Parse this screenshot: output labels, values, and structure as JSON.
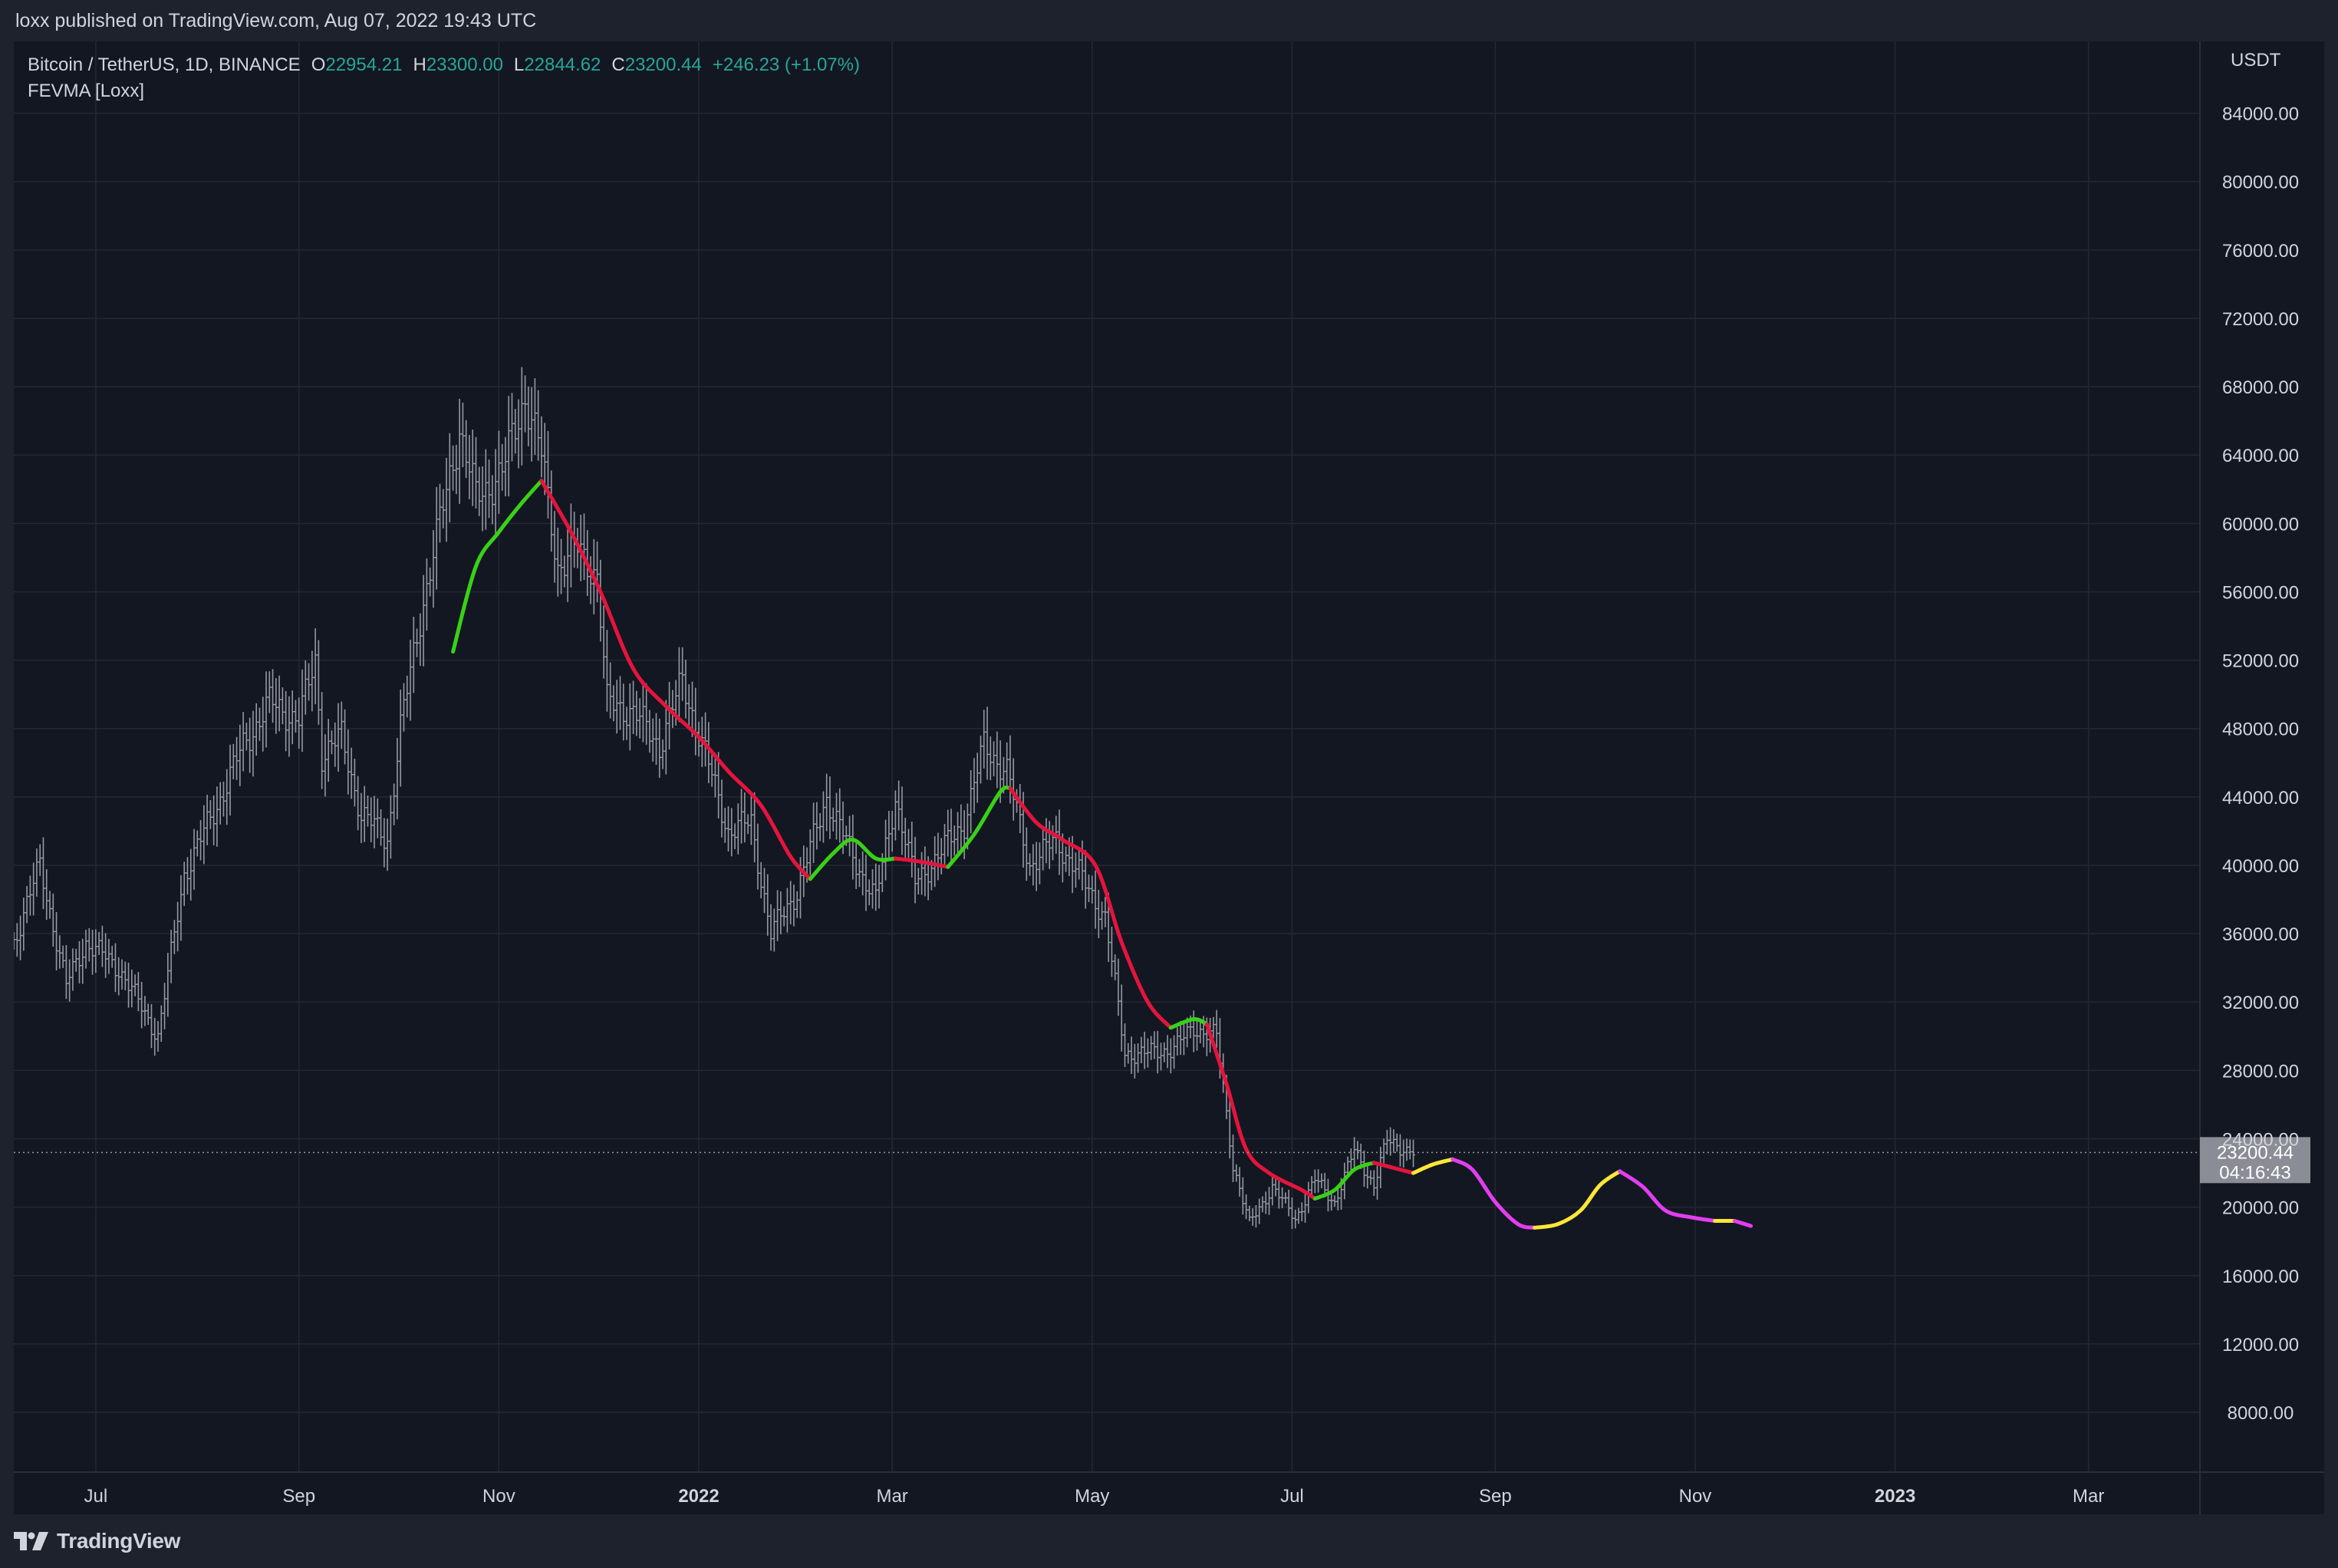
{
  "header": {
    "publish_text": "loxx published on TradingView.com, Aug 07, 2022 19:43 UTC"
  },
  "legend": {
    "symbol": "Bitcoin / TetherUS, 1D, BINANCE",
    "open_label": "O",
    "open_value": "22954.21",
    "high_label": "H",
    "high_value": "23300.00",
    "low_label": "L",
    "low_value": "22844.62",
    "close_label": "C",
    "close_value": "23200.44",
    "change": "+246.23 (+1.07%)",
    "indicator": "FEVMA [Loxx]"
  },
  "footer": {
    "brand": "TradingView",
    "logo_icon": "tradingview-logo-icon"
  },
  "colors": {
    "background": "#131722",
    "frame": "#1e222d",
    "grid": "#242833",
    "bars": "#9598a1",
    "up_green": "#39d117",
    "down_red": "#e5143d",
    "forecast_yellow": "#ffe737",
    "forecast_magenta": "#e23ef0",
    "price_label_bg": "#8a8d95",
    "legend_values": "#26a69a"
  },
  "chart_data": {
    "type": "line",
    "title": "Bitcoin / TetherUS, 1D, BINANCE",
    "y_axis": {
      "label": "USDT",
      "ticks": [
        "84000.00",
        "80000.00",
        "76000.00",
        "72000.00",
        "68000.00",
        "64000.00",
        "60000.00",
        "56000.00",
        "52000.00",
        "48000.00",
        "44000.00",
        "40000.00",
        "36000.00",
        "32000.00",
        "28000.00",
        "24000.00",
        "20000.00",
        "16000.00",
        "12000.00",
        "8000.00"
      ],
      "range": [
        4500,
        88200
      ]
    },
    "x_axis": {
      "ticks": [
        {
          "label": "Jul",
          "date": "2021-07-01",
          "bold": false
        },
        {
          "label": "Sep",
          "date": "2021-09-01",
          "bold": false
        },
        {
          "label": "Nov",
          "date": "2021-11-01",
          "bold": false
        },
        {
          "label": "2022",
          "date": "2022-01-01",
          "bold": true
        },
        {
          "label": "Mar",
          "date": "2022-03-01",
          "bold": false
        },
        {
          "label": "May",
          "date": "2022-05-01",
          "bold": false
        },
        {
          "label": "Jul",
          "date": "2022-07-01",
          "bold": false
        },
        {
          "label": "Sep",
          "date": "2022-09-01",
          "bold": false
        },
        {
          "label": "Nov",
          "date": "2022-11-01",
          "bold": false
        },
        {
          "label": "2023",
          "date": "2023-01-01",
          "bold": true
        },
        {
          "label": "Mar",
          "date": "2023-03-01",
          "bold": false
        }
      ],
      "range": [
        "2021-06-06",
        "2023-04-04"
      ]
    },
    "price_series": {
      "name": "Bitcoin / TetherUS",
      "style": "bars",
      "closes": [
        {
          "date": "2021-06-06",
          "close": 35500
        },
        {
          "date": "2021-06-14",
          "close": 40000
        },
        {
          "date": "2021-06-22",
          "close": 33000
        },
        {
          "date": "2021-06-28",
          "close": 35500
        },
        {
          "date": "2021-07-08",
          "close": 34000
        },
        {
          "date": "2021-07-20",
          "close": 30000
        },
        {
          "date": "2021-07-28",
          "close": 39500
        },
        {
          "date": "2021-08-07",
          "close": 43500
        },
        {
          "date": "2021-08-15",
          "close": 47000
        },
        {
          "date": "2021-08-23",
          "close": 49500
        },
        {
          "date": "2021-09-01",
          "close": 48500
        },
        {
          "date": "2021-09-06",
          "close": 52000
        },
        {
          "date": "2021-09-08",
          "close": 46500
        },
        {
          "date": "2021-09-14",
          "close": 47500
        },
        {
          "date": "2021-09-20",
          "close": 43000
        },
        {
          "date": "2021-09-28",
          "close": 41500
        },
        {
          "date": "2021-10-02",
          "close": 48000
        },
        {
          "date": "2021-10-08",
          "close": 54500
        },
        {
          "date": "2021-10-15",
          "close": 61000
        },
        {
          "date": "2021-10-20",
          "close": 65500
        },
        {
          "date": "2021-10-25",
          "close": 61500
        },
        {
          "date": "2021-11-02",
          "close": 63000
        },
        {
          "date": "2021-11-09",
          "close": 67500
        },
        {
          "date": "2021-11-14",
          "close": 64000
        },
        {
          "date": "2021-11-19",
          "close": 57500
        },
        {
          "date": "2021-11-25",
          "close": 58500
        },
        {
          "date": "2021-12-01",
          "close": 57000
        },
        {
          "date": "2021-12-04",
          "close": 49500
        },
        {
          "date": "2021-12-12",
          "close": 49000
        },
        {
          "date": "2021-12-20",
          "close": 47000
        },
        {
          "date": "2021-12-27",
          "close": 50800
        },
        {
          "date": "2022-01-03",
          "close": 46500
        },
        {
          "date": "2022-01-10",
          "close": 42000
        },
        {
          "date": "2022-01-17",
          "close": 42500
        },
        {
          "date": "2022-01-23",
          "close": 36000
        },
        {
          "date": "2022-01-31",
          "close": 38500
        },
        {
          "date": "2022-02-09",
          "close": 44000
        },
        {
          "date": "2022-02-17",
          "close": 40500
        },
        {
          "date": "2022-02-24",
          "close": 38000
        },
        {
          "date": "2022-03-02",
          "close": 44000
        },
        {
          "date": "2022-03-08",
          "close": 39000
        },
        {
          "date": "2022-03-16",
          "close": 40800
        },
        {
          "date": "2022-03-23",
          "close": 42500
        },
        {
          "date": "2022-03-29",
          "close": 47000
        },
        {
          "date": "2022-04-05",
          "close": 45500
        },
        {
          "date": "2022-04-12",
          "close": 40000
        },
        {
          "date": "2022-04-20",
          "close": 41500
        },
        {
          "date": "2022-04-27",
          "close": 39500
        },
        {
          "date": "2022-05-05",
          "close": 37000
        },
        {
          "date": "2022-05-11",
          "close": 29000
        },
        {
          "date": "2022-05-18",
          "close": 29000
        },
        {
          "date": "2022-05-26",
          "close": 29300
        },
        {
          "date": "2022-06-01",
          "close": 30500
        },
        {
          "date": "2022-06-08",
          "close": 30000
        },
        {
          "date": "2022-06-13",
          "close": 22500
        },
        {
          "date": "2022-06-18",
          "close": 19000
        },
        {
          "date": "2022-06-25",
          "close": 21200
        },
        {
          "date": "2022-07-02",
          "close": 19300
        },
        {
          "date": "2022-07-08",
          "close": 21600
        },
        {
          "date": "2022-07-14",
          "close": 20300
        },
        {
          "date": "2022-07-20",
          "close": 23300
        },
        {
          "date": "2022-07-26",
          "close": 21300
        },
        {
          "date": "2022-07-30",
          "close": 23900
        },
        {
          "date": "2022-08-07",
          "close": 23200
        }
      ]
    },
    "indicator_series": {
      "name": "FEVMA [Loxx]",
      "segments": [
        {
          "color": "green",
          "points": [
            {
              "date": "2021-10-18",
              "value": 52500
            },
            {
              "date": "2021-10-25",
              "value": 57500
            },
            {
              "date": "2021-11-01",
              "value": 59500
            },
            {
              "date": "2021-11-08",
              "value": 61200
            },
            {
              "date": "2021-11-14",
              "value": 62500
            }
          ]
        },
        {
          "color": "red",
          "points": [
            {
              "date": "2021-11-14",
              "value": 62500
            },
            {
              "date": "2021-11-23",
              "value": 59500
            },
            {
              "date": "2021-12-02",
              "value": 56000
            },
            {
              "date": "2021-12-12",
              "value": 51500
            },
            {
              "date": "2021-12-22",
              "value": 49300
            },
            {
              "date": "2022-01-01",
              "value": 47500
            },
            {
              "date": "2022-01-10",
              "value": 45500
            },
            {
              "date": "2022-01-20",
              "value": 43500
            },
            {
              "date": "2022-01-29",
              "value": 40500
            },
            {
              "date": "2022-02-04",
              "value": 39200
            }
          ]
        },
        {
          "color": "green",
          "points": [
            {
              "date": "2022-02-04",
              "value": 39200
            },
            {
              "date": "2022-02-11",
              "value": 40700
            },
            {
              "date": "2022-02-17",
              "value": 41500
            },
            {
              "date": "2022-02-24",
              "value": 40400
            },
            {
              "date": "2022-03-02",
              "value": 40400
            }
          ]
        },
        {
          "color": "red",
          "points": [
            {
              "date": "2022-03-02",
              "value": 40400
            },
            {
              "date": "2022-03-10",
              "value": 40200
            },
            {
              "date": "2022-03-18",
              "value": 39900
            }
          ]
        },
        {
          "color": "green",
          "points": [
            {
              "date": "2022-03-18",
              "value": 39900
            },
            {
              "date": "2022-03-26",
              "value": 41800
            },
            {
              "date": "2022-04-03",
              "value": 44300
            },
            {
              "date": "2022-04-06",
              "value": 44500
            }
          ]
        },
        {
          "color": "red",
          "points": [
            {
              "date": "2022-04-06",
              "value": 44500
            },
            {
              "date": "2022-04-14",
              "value": 42500
            },
            {
              "date": "2022-04-22",
              "value": 41500
            },
            {
              "date": "2022-05-02",
              "value": 40000
            },
            {
              "date": "2022-05-10",
              "value": 35500
            },
            {
              "date": "2022-05-18",
              "value": 32000
            },
            {
              "date": "2022-05-25",
              "value": 30500
            }
          ]
        },
        {
          "color": "green",
          "points": [
            {
              "date": "2022-05-25",
              "value": 30500
            },
            {
              "date": "2022-06-01",
              "value": 31000
            },
            {
              "date": "2022-06-05",
              "value": 30700
            }
          ]
        },
        {
          "color": "red",
          "points": [
            {
              "date": "2022-06-05",
              "value": 30700
            },
            {
              "date": "2022-06-11",
              "value": 27200
            },
            {
              "date": "2022-06-17",
              "value": 23400
            },
            {
              "date": "2022-06-24",
              "value": 22000
            },
            {
              "date": "2022-07-04",
              "value": 21000
            },
            {
              "date": "2022-07-08",
              "value": 20500
            }
          ]
        },
        {
          "color": "green",
          "points": [
            {
              "date": "2022-07-08",
              "value": 20500
            },
            {
              "date": "2022-07-14",
              "value": 21000
            },
            {
              "date": "2022-07-20",
              "value": 22200
            },
            {
              "date": "2022-07-26",
              "value": 22600
            }
          ]
        },
        {
          "color": "red",
          "points": [
            {
              "date": "2022-07-26",
              "value": 22600
            },
            {
              "date": "2022-08-01",
              "value": 22300
            },
            {
              "date": "2022-08-07",
              "value": 22000
            }
          ]
        },
        {
          "color": "yellow",
          "points": [
            {
              "date": "2022-08-07",
              "value": 22000
            },
            {
              "date": "2022-08-13",
              "value": 22500
            },
            {
              "date": "2022-08-19",
              "value": 22800
            }
          ]
        },
        {
          "color": "magenta",
          "points": [
            {
              "date": "2022-08-19",
              "value": 22800
            },
            {
              "date": "2022-08-25",
              "value": 22200
            },
            {
              "date": "2022-09-01",
              "value": 20300
            },
            {
              "date": "2022-09-08",
              "value": 19000
            },
            {
              "date": "2022-09-13",
              "value": 18800
            }
          ]
        },
        {
          "color": "yellow",
          "points": [
            {
              "date": "2022-09-13",
              "value": 18800
            },
            {
              "date": "2022-09-20",
              "value": 19000
            },
            {
              "date": "2022-09-27",
              "value": 19800
            },
            {
              "date": "2022-10-03",
              "value": 21300
            },
            {
              "date": "2022-10-09",
              "value": 22100
            }
          ]
        },
        {
          "color": "magenta",
          "points": [
            {
              "date": "2022-10-09",
              "value": 22100
            },
            {
              "date": "2022-10-16",
              "value": 21200
            },
            {
              "date": "2022-10-23",
              "value": 19800
            },
            {
              "date": "2022-10-31",
              "value": 19400
            },
            {
              "date": "2022-11-07",
              "value": 19200
            }
          ]
        },
        {
          "color": "yellow",
          "points": [
            {
              "date": "2022-11-07",
              "value": 19200
            },
            {
              "date": "2022-11-10",
              "value": 19200
            },
            {
              "date": "2022-11-13",
              "value": 19200
            }
          ]
        },
        {
          "color": "magenta",
          "points": [
            {
              "date": "2022-11-13",
              "value": 19200
            },
            {
              "date": "2022-11-18",
              "value": 18900
            }
          ]
        }
      ]
    },
    "last_price": {
      "value": 23200.44,
      "label": "23200.44",
      "countdown": "04:16:43"
    },
    "grid": true
  }
}
